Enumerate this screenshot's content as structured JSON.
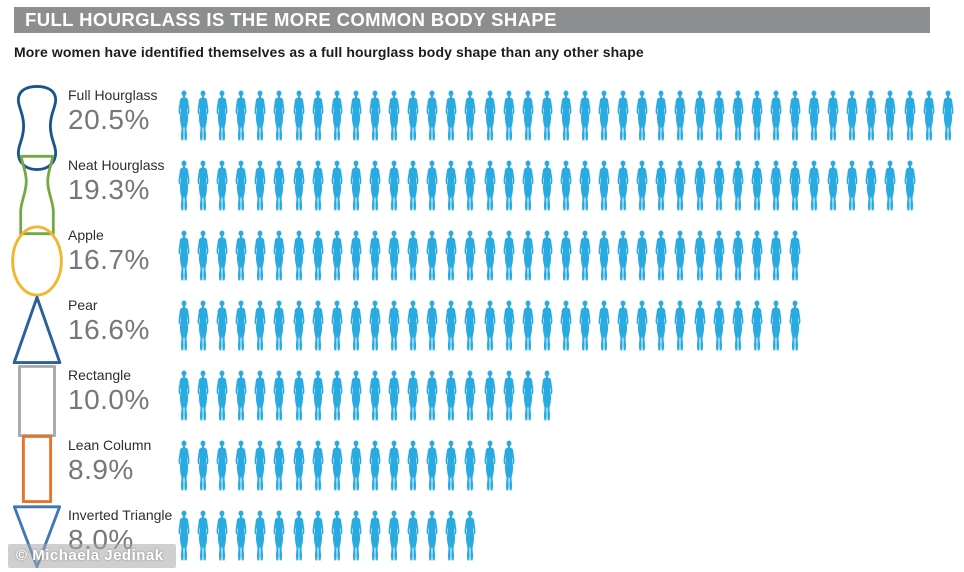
{
  "header": {
    "title": "FULL HOURGLASS IS THE MORE COMMON BODY SHAPE"
  },
  "subtitle": "More women have identified themselves as a full hourglass body shape than any other shape",
  "watermark": "© Michaela Jedinak",
  "colors": {
    "header_bg": "#8D8E90",
    "header_text": "#ffffff",
    "figure_blue": "#29ABE2",
    "percent_gray": "#76777A",
    "label_dark": "#2e2e30"
  },
  "chart_data": {
    "type": "pictogram",
    "title": "FULL HOURGLASS IS THE MORE COMMON BODY SHAPE",
    "subtitle": "More women have identified themselves as a full hourglass body shape than any other shape",
    "icon": "woman-silhouette",
    "icon_color": "#29ABE2",
    "unit_note": "one icon ≈ 0.5 percentage points",
    "categories": [
      "Full Hourglass",
      "Neat Hourglass",
      "Apple",
      "Pear",
      "Rectangle",
      "Lean Column",
      "Inverted Triangle"
    ],
    "values": [
      20.5,
      19.3,
      16.7,
      16.6,
      10.0,
      8.9,
      8.0
    ],
    "rows": [
      {
        "label": "Full Hourglass",
        "pct_label": "20.5%",
        "value": 20.5,
        "icon_count": 41,
        "shape": "full-hourglass",
        "shape_color": "#1B558F"
      },
      {
        "label": "Neat Hourglass",
        "pct_label": "19.3%",
        "value": 19.3,
        "icon_count": 39,
        "shape": "neat-hourglass",
        "shape_color": "#74A843"
      },
      {
        "label": "Apple",
        "pct_label": "16.7%",
        "value": 16.7,
        "icon_count": 33,
        "shape": "apple",
        "shape_color": "#EFB732"
      },
      {
        "label": "Pear",
        "pct_label": "16.6%",
        "value": 16.6,
        "icon_count": 33,
        "shape": "pear",
        "shape_color": "#2D5F9E"
      },
      {
        "label": "Rectangle",
        "pct_label": "10.0%",
        "value": 10.0,
        "icon_count": 20,
        "shape": "rectangle",
        "shape_color": "#A9ABAE"
      },
      {
        "label": "Lean Column",
        "pct_label": "8.9%",
        "value": 8.9,
        "icon_count": 18,
        "shape": "lean-column",
        "shape_color": "#E4752B"
      },
      {
        "label": "Inverted Triangle",
        "pct_label": "8.0%",
        "value": 8.0,
        "icon_count": 16,
        "shape": "inverted-triangle",
        "shape_color": "#3C78B8"
      }
    ]
  }
}
